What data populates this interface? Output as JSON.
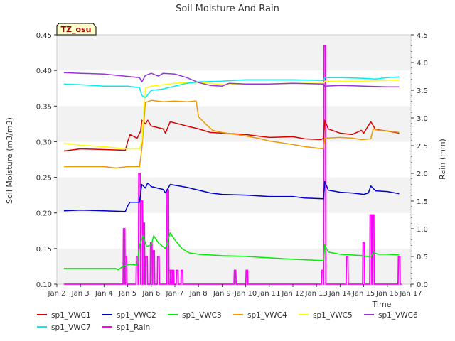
{
  "chart_data": {
    "type": "line",
    "title": "Soil Moisture And Rain",
    "xlabel": "Time",
    "ylabel": "Soil Moisture (m3/m3)",
    "y2label": "Rain (mm)",
    "site_label": "TZ_osu",
    "x_ticks": [
      "Jan 2",
      "Jan 3",
      "Jan 4",
      "Jan 5",
      "Jan 6",
      "Jan 7",
      "Jan 8",
      "Jan 9",
      "Jan 10",
      "Jan 11",
      "Jan 12",
      "Jan 13",
      "Jan 14",
      "Jan 15",
      "Jan 16",
      "Jan 17"
    ],
    "xlim": [
      2,
      17
    ],
    "ylim": [
      0.1,
      0.45
    ],
    "y_ticks": [
      "0.10",
      "0.15",
      "0.20",
      "0.25",
      "0.30",
      "0.35",
      "0.40",
      "0.45"
    ],
    "y2lim": [
      0,
      4.5
    ],
    "y2_ticks": [
      "0.0",
      "0.5",
      "1.0",
      "1.5",
      "2.0",
      "2.5",
      "3.0",
      "3.5",
      "4.0",
      "4.5"
    ],
    "grid": "horizontal bands",
    "legend_position": "bottom",
    "series": [
      {
        "name": "sp1_VWC1",
        "color": "#dd0000",
        "axis": "left",
        "points": [
          [
            2.3,
            0.287
          ],
          [
            3.0,
            0.29
          ],
          [
            4.0,
            0.289
          ],
          [
            4.9,
            0.288
          ],
          [
            5.0,
            0.3
          ],
          [
            5.1,
            0.31
          ],
          [
            5.4,
            0.305
          ],
          [
            5.55,
            0.315
          ],
          [
            5.6,
            0.33
          ],
          [
            5.75,
            0.325
          ],
          [
            5.85,
            0.33
          ],
          [
            6.0,
            0.322
          ],
          [
            6.5,
            0.318
          ],
          [
            6.6,
            0.312
          ],
          [
            6.8,
            0.328
          ],
          [
            7.5,
            0.322
          ],
          [
            8.0,
            0.318
          ],
          [
            8.5,
            0.313
          ],
          [
            9.0,
            0.312
          ],
          [
            10.0,
            0.31
          ],
          [
            11.0,
            0.306
          ],
          [
            12.0,
            0.307
          ],
          [
            12.5,
            0.304
          ],
          [
            13.2,
            0.303
          ],
          [
            13.3,
            0.305
          ],
          [
            13.35,
            0.33
          ],
          [
            13.5,
            0.318
          ],
          [
            14.0,
            0.312
          ],
          [
            14.5,
            0.31
          ],
          [
            14.9,
            0.316
          ],
          [
            15.0,
            0.312
          ],
          [
            15.3,
            0.328
          ],
          [
            15.5,
            0.317
          ],
          [
            16.0,
            0.315
          ],
          [
            16.5,
            0.312
          ]
        ]
      },
      {
        "name": "sp1_VWC2",
        "color": "#0000cc",
        "axis": "left",
        "points": [
          [
            2.3,
            0.203
          ],
          [
            3.0,
            0.204
          ],
          [
            4.0,
            0.203
          ],
          [
            4.9,
            0.202
          ],
          [
            5.0,
            0.21
          ],
          [
            5.1,
            0.215
          ],
          [
            5.5,
            0.215
          ],
          [
            5.6,
            0.24
          ],
          [
            5.75,
            0.235
          ],
          [
            5.85,
            0.242
          ],
          [
            6.0,
            0.237
          ],
          [
            6.5,
            0.233
          ],
          [
            6.6,
            0.228
          ],
          [
            6.8,
            0.24
          ],
          [
            7.5,
            0.236
          ],
          [
            8.0,
            0.232
          ],
          [
            8.5,
            0.228
          ],
          [
            9.0,
            0.226
          ],
          [
            10.0,
            0.225
          ],
          [
            11.0,
            0.223
          ],
          [
            12.0,
            0.223
          ],
          [
            12.5,
            0.221
          ],
          [
            13.3,
            0.22
          ],
          [
            13.35,
            0.244
          ],
          [
            13.5,
            0.232
          ],
          [
            14.0,
            0.229
          ],
          [
            14.5,
            0.228
          ],
          [
            15.0,
            0.226
          ],
          [
            15.2,
            0.228
          ],
          [
            15.3,
            0.238
          ],
          [
            15.5,
            0.231
          ],
          [
            16.0,
            0.23
          ],
          [
            16.5,
            0.227
          ]
        ]
      },
      {
        "name": "sp1_VWC3",
        "color": "#00ee00",
        "axis": "left",
        "points": [
          [
            2.3,
            0.122
          ],
          [
            3.0,
            0.122
          ],
          [
            4.0,
            0.122
          ],
          [
            4.5,
            0.122
          ],
          [
            4.6,
            0.12
          ],
          [
            4.8,
            0.125
          ],
          [
            5.1,
            0.128
          ],
          [
            5.4,
            0.127
          ],
          [
            5.5,
            0.155
          ],
          [
            5.65,
            0.168
          ],
          [
            5.8,
            0.153
          ],
          [
            6.0,
            0.155
          ],
          [
            6.1,
            0.168
          ],
          [
            6.3,
            0.158
          ],
          [
            6.6,
            0.15
          ],
          [
            6.8,
            0.172
          ],
          [
            7.0,
            0.162
          ],
          [
            7.3,
            0.15
          ],
          [
            7.6,
            0.144
          ],
          [
            8.0,
            0.142
          ],
          [
            8.5,
            0.141
          ],
          [
            9.0,
            0.14
          ],
          [
            10.0,
            0.139
          ],
          [
            11.0,
            0.137
          ],
          [
            12.0,
            0.135
          ],
          [
            13.3,
            0.133
          ],
          [
            13.35,
            0.155
          ],
          [
            13.5,
            0.145
          ],
          [
            14.0,
            0.142
          ],
          [
            15.0,
            0.14
          ],
          [
            15.3,
            0.138
          ],
          [
            15.4,
            0.145
          ],
          [
            15.6,
            0.142
          ],
          [
            16.0,
            0.142
          ],
          [
            16.5,
            0.141
          ]
        ]
      },
      {
        "name": "sp1_VWC4",
        "color": "#ee9900",
        "axis": "left",
        "points": [
          [
            2.3,
            0.265
          ],
          [
            3.0,
            0.265
          ],
          [
            4.0,
            0.265
          ],
          [
            4.5,
            0.263
          ],
          [
            5.0,
            0.265
          ],
          [
            5.5,
            0.265
          ],
          [
            5.6,
            0.29
          ],
          [
            5.75,
            0.355
          ],
          [
            6.0,
            0.358
          ],
          [
            6.5,
            0.356
          ],
          [
            7.0,
            0.357
          ],
          [
            7.5,
            0.356
          ],
          [
            7.9,
            0.357
          ],
          [
            8.0,
            0.335
          ],
          [
            8.3,
            0.325
          ],
          [
            8.6,
            0.316
          ],
          [
            9.0,
            0.313
          ],
          [
            10.0,
            0.308
          ],
          [
            10.5,
            0.305
          ],
          [
            11.0,
            0.301
          ],
          [
            12.0,
            0.296
          ],
          [
            12.5,
            0.293
          ],
          [
            13.3,
            0.29
          ],
          [
            13.35,
            0.305
          ],
          [
            14.0,
            0.306
          ],
          [
            14.5,
            0.305
          ],
          [
            14.9,
            0.303
          ],
          [
            15.3,
            0.304
          ],
          [
            15.4,
            0.318
          ],
          [
            15.6,
            0.316
          ],
          [
            16.0,
            0.315
          ],
          [
            16.5,
            0.313
          ]
        ]
      },
      {
        "name": "sp1_VWC5",
        "color": "#ffff00",
        "axis": "left",
        "points": [
          [
            2.3,
            0.298
          ],
          [
            3.0,
            0.295
          ],
          [
            4.0,
            0.293
          ],
          [
            4.9,
            0.29
          ],
          [
            5.5,
            0.29
          ],
          [
            5.6,
            0.3
          ],
          [
            5.75,
            0.375
          ],
          [
            6.0,
            0.378
          ],
          [
            6.5,
            0.38
          ],
          [
            7.0,
            0.382
          ],
          [
            7.5,
            0.383
          ],
          [
            8.0,
            0.383
          ],
          [
            8.5,
            0.382
          ],
          [
            9.0,
            0.38
          ],
          [
            10.0,
            0.381
          ],
          [
            11.0,
            0.381
          ],
          [
            12.0,
            0.382
          ],
          [
            13.3,
            0.382
          ],
          [
            13.35,
            0.385
          ],
          [
            14.0,
            0.385
          ],
          [
            15.0,
            0.385
          ],
          [
            16.0,
            0.386
          ],
          [
            16.5,
            0.387
          ]
        ]
      },
      {
        "name": "sp1_VWC6",
        "color": "#9933dd",
        "axis": "left",
        "points": [
          [
            2.3,
            0.397
          ],
          [
            3.0,
            0.396
          ],
          [
            4.0,
            0.395
          ],
          [
            4.9,
            0.392
          ],
          [
            5.5,
            0.39
          ],
          [
            5.6,
            0.384
          ],
          [
            5.75,
            0.393
          ],
          [
            6.0,
            0.396
          ],
          [
            6.3,
            0.392
          ],
          [
            6.5,
            0.396
          ],
          [
            7.0,
            0.395
          ],
          [
            7.5,
            0.39
          ],
          [
            8.0,
            0.383
          ],
          [
            8.5,
            0.379
          ],
          [
            9.0,
            0.378
          ],
          [
            9.3,
            0.382
          ],
          [
            10.0,
            0.381
          ],
          [
            11.0,
            0.381
          ],
          [
            12.0,
            0.382
          ],
          [
            13.3,
            0.381
          ],
          [
            13.35,
            0.378
          ],
          [
            14.0,
            0.379
          ],
          [
            15.0,
            0.378
          ],
          [
            16.0,
            0.377
          ],
          [
            16.5,
            0.377
          ]
        ]
      },
      {
        "name": "sp1_VWC7",
        "color": "#00eeee",
        "axis": "left",
        "points": [
          [
            2.3,
            0.381
          ],
          [
            3.0,
            0.38
          ],
          [
            4.0,
            0.378
          ],
          [
            5.0,
            0.378
          ],
          [
            5.5,
            0.376
          ],
          [
            5.6,
            0.365
          ],
          [
            5.75,
            0.362
          ],
          [
            6.0,
            0.372
          ],
          [
            6.5,
            0.374
          ],
          [
            7.0,
            0.378
          ],
          [
            7.5,
            0.382
          ],
          [
            8.0,
            0.384
          ],
          [
            9.0,
            0.385
          ],
          [
            10.0,
            0.387
          ],
          [
            11.0,
            0.387
          ],
          [
            12.0,
            0.387
          ],
          [
            13.3,
            0.386
          ],
          [
            13.35,
            0.39
          ],
          [
            14.0,
            0.39
          ],
          [
            15.0,
            0.389
          ],
          [
            15.5,
            0.388
          ],
          [
            16.0,
            0.39
          ],
          [
            16.5,
            0.391
          ]
        ]
      }
    ],
    "rain": {
      "name": "sp1_Rain",
      "color": "#ff00ff",
      "axis": "right",
      "events": [
        [
          4.85,
          1.0
        ],
        [
          4.92,
          0.5
        ],
        [
          5.4,
          0.5
        ],
        [
          5.5,
          2.0
        ],
        [
          5.6,
          1.5
        ],
        [
          5.68,
          1.1
        ],
        [
          5.8,
          0.5
        ],
        [
          6.0,
          0.75
        ],
        [
          6.1,
          0.6
        ],
        [
          6.3,
          0.5
        ],
        [
          6.7,
          1.7
        ],
        [
          6.78,
          0.25
        ],
        [
          6.85,
          0.25
        ],
        [
          6.92,
          0.25
        ],
        [
          7.1,
          0.25
        ],
        [
          7.3,
          0.25
        ],
        [
          9.55,
          0.25
        ],
        [
          10.05,
          0.25
        ],
        [
          13.25,
          0.25
        ],
        [
          13.35,
          4.3
        ],
        [
          14.3,
          0.5
        ],
        [
          15.0,
          0.75
        ],
        [
          15.3,
          1.25
        ],
        [
          15.4,
          1.25
        ],
        [
          16.5,
          0.5
        ]
      ]
    }
  }
}
